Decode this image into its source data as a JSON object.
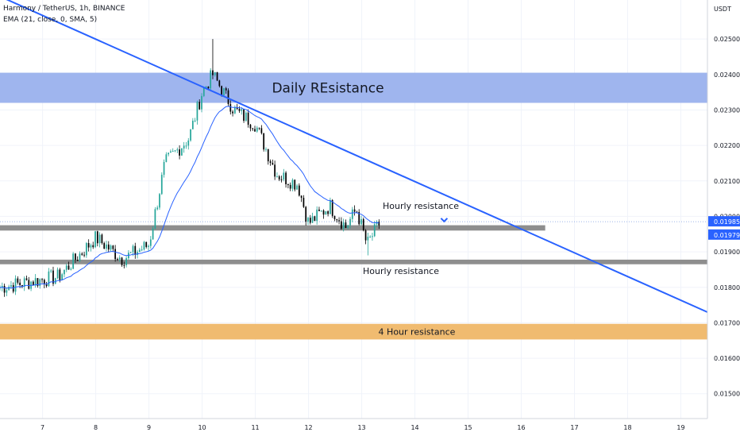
{
  "header": {
    "symbol_line": "Harmony / TetherUS, 1h, BINANCE",
    "indicator_line": "EMA (21, close, 0, SMA, 5)"
  },
  "axis": {
    "currency": "USDT",
    "price_ticks": [
      "0.02500",
      "0.02400",
      "0.02300",
      "0.02200",
      "0.02100",
      "0.02000",
      "0.01900",
      "0.01800",
      "0.01700",
      "0.01600",
      "0.01500"
    ],
    "date_ticks": [
      "7",
      "8",
      "9",
      "10",
      "11",
      "12",
      "13",
      "14",
      "15",
      "16",
      "17",
      "18",
      "19"
    ]
  },
  "price_labels": {
    "last": "0.01985",
    "ema": "0.01979"
  },
  "annotations": {
    "daily": "Daily REsistance",
    "hourly_upper": "Hourly resistance",
    "hourly_lower": "Hourly resistance",
    "four_hour": "4 Hour resistance"
  },
  "colors": {
    "up": "#26a69a",
    "down": "#000000",
    "ema": "#2962ff",
    "trendline": "#2962ff",
    "daily_zone": "#9fb5ee",
    "hourly_zone": "#8e8e8e",
    "four_hour_zone": "#f0bb70",
    "grid": "#f0f3fa"
  },
  "chart_data": {
    "type": "candlestick",
    "title": "Harmony / TetherUS, 1h, BINANCE",
    "ylabel": "USDT",
    "xlim": [
      6.2,
      19.5
    ],
    "ylim": [
      0.0143,
      0.0261
    ],
    "grid": true,
    "zones": [
      {
        "name": "Daily REsistance",
        "from": 0.0232,
        "to": 0.02405
      },
      {
        "name": "Hourly resistance",
        "from": 0.0196,
        "to": 0.01975,
        "x_end": 16.45
      },
      {
        "name": "Hourly resistance",
        "from": 0.01865,
        "to": 0.01878
      },
      {
        "name": "4 Hour resistance",
        "from": 0.01653,
        "to": 0.01697
      }
    ],
    "trendline": {
      "x": [
        6.2,
        19.5
      ],
      "y": [
        0.0262,
        0.0173
      ]
    },
    "key_levels": [
      {
        "x": 6.2,
        "price": 0.018
      },
      {
        "x": 7.3,
        "price": 0.0183
      },
      {
        "x": 8.0,
        "price": 0.0194
      },
      {
        "x": 8.5,
        "price": 0.0188
      },
      {
        "x": 9.0,
        "price": 0.0192
      },
      {
        "x": 9.3,
        "price": 0.0215
      },
      {
        "x": 9.75,
        "price": 0.0222
      },
      {
        "x": 10.0,
        "price": 0.0235
      },
      {
        "x": 10.2,
        "price": 0.024
      },
      {
        "x": 10.6,
        "price": 0.023
      },
      {
        "x": 11.0,
        "price": 0.0226
      },
      {
        "x": 11.4,
        "price": 0.0212
      },
      {
        "x": 11.8,
        "price": 0.0209
      },
      {
        "x": 12.0,
        "price": 0.0198
      },
      {
        "x": 12.4,
        "price": 0.0203
      },
      {
        "x": 12.7,
        "price": 0.0197
      },
      {
        "x": 12.9,
        "price": 0.0202
      },
      {
        "x": 13.1,
        "price": 0.0192
      },
      {
        "x": 13.35,
        "price": 0.01985
      }
    ],
    "ema": {
      "name": "EMA (21, close, 0, SMA, 5)",
      "last": 0.01979
    },
    "last_price": 0.01985,
    "markers": [
      {
        "type": "arrow-down",
        "x": 14.55,
        "price": 0.01988
      }
    ]
  }
}
